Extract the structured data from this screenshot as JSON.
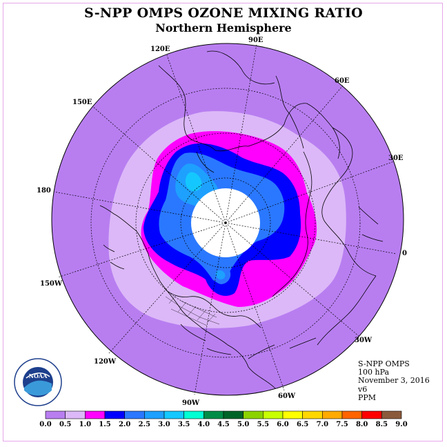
{
  "title": "S-NPP OMPS OZONE MIXING RATIO",
  "subtitle": "Northern Hemisphere",
  "longitude_labels": [
    "90E",
    "60E",
    "30E",
    "0",
    "30W",
    "60W",
    "90W",
    "120W",
    "150W",
    "180",
    "150E",
    "120E"
  ],
  "info": {
    "instrument": "S-NPP OMPS",
    "level": "100 hPa",
    "date": "November 3, 2016",
    "version": "v6",
    "units": "PPM"
  },
  "logo": {
    "text": "NOAA",
    "ring_text": "NATIONAL OCEANIC AND ATMOSPHERIC ADMINISTRATION · U.S. DEPARTMENT OF COMMERCE"
  },
  "colorbar": {
    "ticks": [
      "0.0",
      "0.5",
      "1.0",
      "1.5",
      "2.0",
      "2.5",
      "3.0",
      "3.5",
      "4.0",
      "4.5",
      "5.0",
      "5.5",
      "6.0",
      "6.5",
      "7.0",
      "7.5",
      "8.0",
      "8.5",
      "9.0"
    ],
    "colors": [
      "#b87ef0",
      "#dcb8f8",
      "#ff00ff",
      "#0000ff",
      "#2a78ff",
      "#1ea0ff",
      "#14c8ff",
      "#00ffd2",
      "#008c46",
      "#006428",
      "#8cd200",
      "#c8ff00",
      "#ffff00",
      "#ffd700",
      "#ffaa00",
      "#ff6400",
      "#ff0000",
      "#8b5a3c"
    ]
  },
  "colors": {
    "background_field": "#b87ef0",
    "no_data": "#ffffff"
  }
}
